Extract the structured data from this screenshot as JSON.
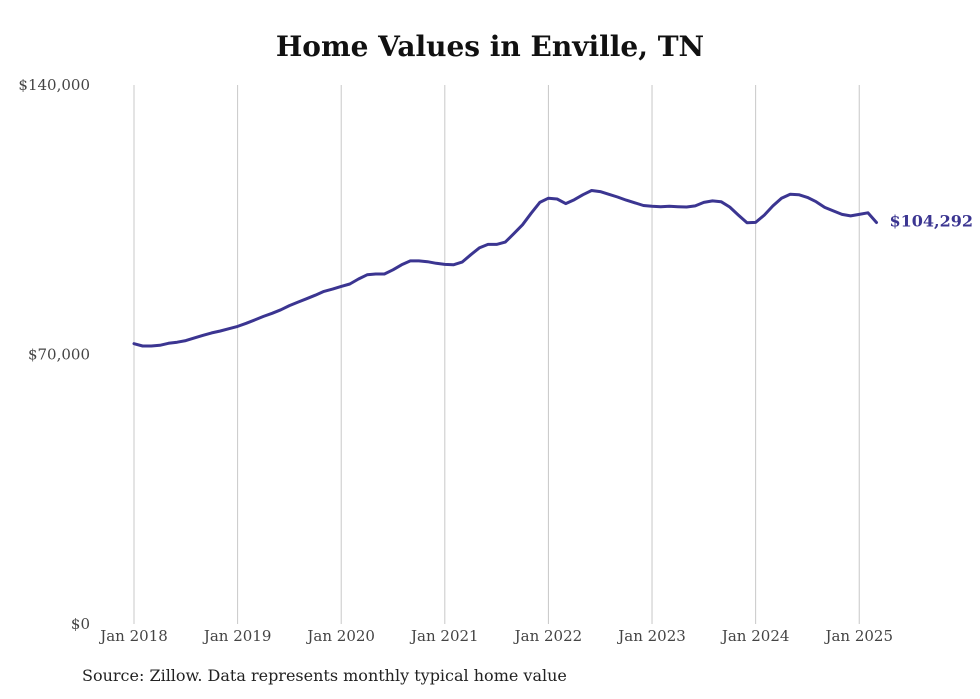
{
  "chart_data": {
    "type": "line",
    "title": "Home Values in Enville, TN",
    "xlabel": "",
    "ylabel": "",
    "ylim": [
      0,
      140000
    ],
    "xlim": [
      "2018-01",
      "2025-03"
    ],
    "y_ticks": [
      "$0",
      "$70,000",
      "$140,000"
    ],
    "y_tick_values": [
      0,
      70000,
      140000
    ],
    "x_ticks": [
      "Jan 2018",
      "Jan 2019",
      "Jan 2020",
      "Jan 2021",
      "Jan 2022",
      "Jan 2023",
      "Jan 2024",
      "Jan 2025"
    ],
    "x_tick_values": [
      "2018-01",
      "2019-01",
      "2020-01",
      "2021-01",
      "2022-01",
      "2023-01",
      "2024-01",
      "2025-01"
    ],
    "grid": "vertical",
    "line_color": "#3b3591",
    "end_label": "$104,292",
    "series": [
      {
        "x": [
          "2018-01",
          "2018-02",
          "2018-03",
          "2018-04",
          "2018-05",
          "2018-06",
          "2018-07",
          "2018-08",
          "2018-09",
          "2018-10",
          "2018-11",
          "2018-12",
          "2019-01",
          "2019-02",
          "2019-03",
          "2019-04",
          "2019-05",
          "2019-06",
          "2019-07",
          "2019-08",
          "2019-09",
          "2019-10",
          "2019-11",
          "2019-12",
          "2020-01",
          "2020-02",
          "2020-03",
          "2020-04",
          "2020-05",
          "2020-06",
          "2020-07",
          "2020-08",
          "2020-09",
          "2020-10",
          "2020-11",
          "2020-12",
          "2021-01",
          "2021-02",
          "2021-03",
          "2021-04",
          "2021-05",
          "2021-06",
          "2021-07",
          "2021-08",
          "2021-09",
          "2021-10",
          "2021-11",
          "2021-12",
          "2022-01",
          "2022-02",
          "2022-03",
          "2022-04",
          "2022-05",
          "2022-06",
          "2022-07",
          "2022-08",
          "2022-09",
          "2022-10",
          "2022-11",
          "2022-12",
          "2023-01",
          "2023-02",
          "2023-03",
          "2023-04",
          "2023-05",
          "2023-06",
          "2023-07",
          "2023-08",
          "2023-09",
          "2023-10",
          "2023-11",
          "2023-12",
          "2024-01",
          "2024-02",
          "2024-03",
          "2024-04",
          "2024-05",
          "2024-06",
          "2024-07",
          "2024-08",
          "2024-09",
          "2024-10",
          "2024-11",
          "2024-12",
          "2025-01",
          "2025-02",
          "2025-03"
        ],
        "values": [
          72800,
          72200,
          72200,
          72400,
          72900,
          73200,
          73600,
          74300,
          75000,
          75600,
          76100,
          76700,
          77300,
          78100,
          79000,
          79900,
          80700,
          81600,
          82700,
          83600,
          84500,
          85400,
          86400,
          87000,
          87700,
          88300,
          89600,
          90700,
          90900,
          90900,
          92000,
          93300,
          94300,
          94300,
          94100,
          93700,
          93400,
          93300,
          94000,
          95900,
          97700,
          98600,
          98600,
          99200,
          101400,
          103700,
          106700,
          109500,
          110600,
          110400,
          109200,
          110200,
          111500,
          112600,
          112300,
          111600,
          110900,
          110100,
          109400,
          108700,
          108500,
          108400,
          108500,
          108400,
          108300,
          108600,
          109500,
          109900,
          109700,
          108300,
          106200,
          104200,
          104300,
          106200,
          108600,
          110600,
          111600,
          111500,
          110800,
          109700,
          108200,
          107300,
          106400,
          106000,
          106400,
          106800,
          104292
        ]
      }
    ]
  },
  "source_note": "Source: Zillow. Data represents monthly typical home value"
}
